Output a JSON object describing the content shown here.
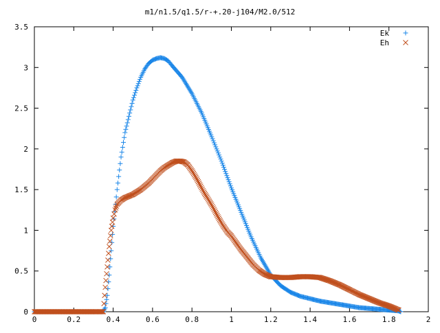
{
  "chart_data": {
    "type": "scatter",
    "title": "m1/n1.5/q1.5/r-+.20-j104/M2.0/512",
    "xlabel": "",
    "ylabel": "",
    "xlim": [
      0,
      2
    ],
    "ylim": [
      0,
      3.5
    ],
    "xticks": [
      "0",
      "0.2",
      "0.4",
      "0.6",
      "0.8",
      "1",
      "1.2",
      "1.4",
      "1.6",
      "1.8",
      "2"
    ],
    "yticks": [
      "0",
      "0.5",
      "1",
      "1.5",
      "2",
      "2.5",
      "3",
      "3.5"
    ],
    "grid": false,
    "legend_position": "top-right",
    "series": [
      {
        "name": "Ek",
        "marker": "+",
        "color": "#1a86e8",
        "points": [
          [
            0.0,
            0.0
          ],
          [
            0.1,
            0.0
          ],
          [
            0.2,
            0.0
          ],
          [
            0.3,
            0.0
          ],
          [
            0.35,
            0.0
          ],
          [
            0.36,
            0.05
          ],
          [
            0.37,
            0.2
          ],
          [
            0.38,
            0.45
          ],
          [
            0.39,
            0.75
          ],
          [
            0.4,
            1.05
          ],
          [
            0.42,
            1.5
          ],
          [
            0.44,
            1.9
          ],
          [
            0.46,
            2.2
          ],
          [
            0.48,
            2.4
          ],
          [
            0.5,
            2.6
          ],
          [
            0.52,
            2.75
          ],
          [
            0.54,
            2.88
          ],
          [
            0.56,
            2.98
          ],
          [
            0.58,
            3.05
          ],
          [
            0.6,
            3.09
          ],
          [
            0.62,
            3.11
          ],
          [
            0.64,
            3.12
          ],
          [
            0.66,
            3.11
          ],
          [
            0.68,
            3.08
          ],
          [
            0.7,
            3.02
          ],
          [
            0.75,
            2.88
          ],
          [
            0.8,
            2.68
          ],
          [
            0.85,
            2.44
          ],
          [
            0.9,
            2.15
          ],
          [
            0.95,
            1.85
          ],
          [
            1.0,
            1.52
          ],
          [
            1.05,
            1.22
          ],
          [
            1.1,
            0.92
          ],
          [
            1.15,
            0.66
          ],
          [
            1.2,
            0.45
          ],
          [
            1.25,
            0.32
          ],
          [
            1.3,
            0.24
          ],
          [
            1.35,
            0.19
          ],
          [
            1.4,
            0.16
          ],
          [
            1.45,
            0.13
          ],
          [
            1.5,
            0.11
          ],
          [
            1.55,
            0.09
          ],
          [
            1.6,
            0.07
          ],
          [
            1.65,
            0.05
          ],
          [
            1.7,
            0.04
          ],
          [
            1.75,
            0.03
          ],
          [
            1.8,
            0.02
          ],
          [
            1.85,
            0.01
          ],
          [
            1.86,
            0.0
          ]
        ]
      },
      {
        "name": "Eh",
        "marker": "x",
        "color": "#c0501e",
        "points": [
          [
            0.0,
            0.0
          ],
          [
            0.1,
            0.0
          ],
          [
            0.2,
            0.0
          ],
          [
            0.3,
            0.0
          ],
          [
            0.35,
            0.0
          ],
          [
            0.36,
            0.3
          ],
          [
            0.37,
            0.55
          ],
          [
            0.38,
            0.8
          ],
          [
            0.39,
            1.0
          ],
          [
            0.4,
            1.15
          ],
          [
            0.41,
            1.25
          ],
          [
            0.42,
            1.32
          ],
          [
            0.44,
            1.37
          ],
          [
            0.46,
            1.4
          ],
          [
            0.48,
            1.42
          ],
          [
            0.5,
            1.44
          ],
          [
            0.52,
            1.47
          ],
          [
            0.54,
            1.5
          ],
          [
            0.56,
            1.54
          ],
          [
            0.58,
            1.58
          ],
          [
            0.6,
            1.63
          ],
          [
            0.62,
            1.68
          ],
          [
            0.64,
            1.73
          ],
          [
            0.66,
            1.77
          ],
          [
            0.68,
            1.8
          ],
          [
            0.7,
            1.83
          ],
          [
            0.72,
            1.85
          ],
          [
            0.74,
            1.85
          ],
          [
            0.76,
            1.84
          ],
          [
            0.78,
            1.8
          ],
          [
            0.8,
            1.73
          ],
          [
            0.82,
            1.65
          ],
          [
            0.84,
            1.56
          ],
          [
            0.86,
            1.47
          ],
          [
            0.88,
            1.39
          ],
          [
            0.9,
            1.31
          ],
          [
            0.92,
            1.22
          ],
          [
            0.94,
            1.13
          ],
          [
            0.96,
            1.05
          ],
          [
            0.98,
            0.98
          ],
          [
            1.0,
            0.93
          ],
          [
            1.02,
            0.86
          ],
          [
            1.05,
            0.76
          ],
          [
            1.08,
            0.67
          ],
          [
            1.11,
            0.58
          ],
          [
            1.14,
            0.51
          ],
          [
            1.17,
            0.46
          ],
          [
            1.2,
            0.43
          ],
          [
            1.25,
            0.42
          ],
          [
            1.3,
            0.42
          ],
          [
            1.35,
            0.43
          ],
          [
            1.4,
            0.43
          ],
          [
            1.45,
            0.42
          ],
          [
            1.5,
            0.38
          ],
          [
            1.55,
            0.33
          ],
          [
            1.6,
            0.27
          ],
          [
            1.65,
            0.21
          ],
          [
            1.7,
            0.16
          ],
          [
            1.75,
            0.11
          ],
          [
            1.8,
            0.07
          ],
          [
            1.83,
            0.04
          ],
          [
            1.85,
            0.02
          ]
        ]
      }
    ]
  }
}
